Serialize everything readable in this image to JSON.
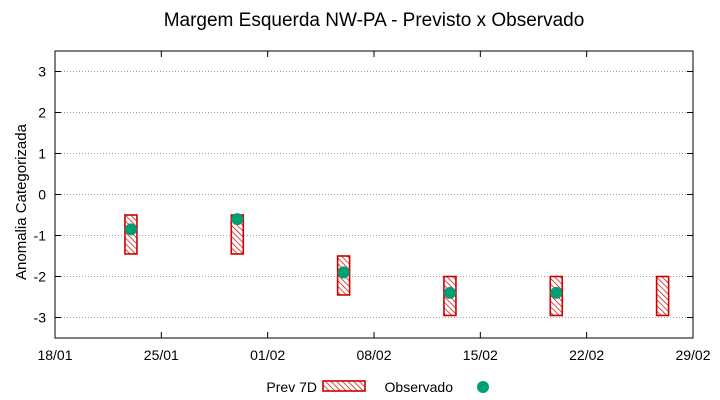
{
  "chart_data": {
    "type": "range",
    "title": "Margem Esquerda NW-PA - Previsto x Observado",
    "xlabel": "",
    "ylabel": "Anomalia Categorizada",
    "xlim": [
      "2016-01-18",
      "2016-02-29"
    ],
    "ylim": [
      -3.5,
      3.5
    ],
    "x_tick_labels": [
      "18/01",
      "25/01",
      "01/02",
      "08/02",
      "15/02",
      "22/02",
      "29/02"
    ],
    "y_ticks": [
      3,
      2,
      1,
      0,
      -1,
      -2,
      -3
    ],
    "grid": true,
    "legend": "bottom-center",
    "series": [
      {
        "name": "Prev 7D",
        "kind": "range",
        "color": "#cc0000",
        "points": [
          {
            "x": "2016-01-23",
            "low": -1.45,
            "high": -0.5
          },
          {
            "x": "2016-01-30",
            "low": -1.45,
            "high": -0.5
          },
          {
            "x": "2016-02-06",
            "low": -2.45,
            "high": -1.5
          },
          {
            "x": "2016-02-13",
            "low": -2.95,
            "high": -2.0
          },
          {
            "x": "2016-02-20",
            "low": -2.95,
            "high": -2.0
          },
          {
            "x": "2016-02-27",
            "low": -2.95,
            "high": -2.0
          }
        ]
      },
      {
        "name": "Observado",
        "kind": "point",
        "color": "#009e73",
        "points": [
          {
            "x": "2016-01-23",
            "y": -0.85
          },
          {
            "x": "2016-01-30",
            "y": -0.6
          },
          {
            "x": "2016-02-06",
            "y": -1.9
          },
          {
            "x": "2016-02-13",
            "y": -2.4
          },
          {
            "x": "2016-02-20",
            "y": -2.4
          }
        ]
      }
    ]
  }
}
